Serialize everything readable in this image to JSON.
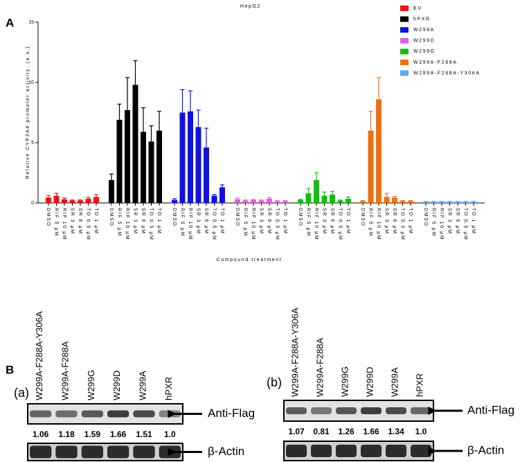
{
  "chart_data": {
    "type": "bar",
    "title": "HepG2",
    "y_label": "Relative CYP3A4 promoter activity, (a.u.)",
    "x_label": "Compound treatment",
    "categories": [
      "DMSO",
      "RIF 5 µM",
      "RIF 10 µM",
      "SR 3 µM",
      "SR 6 µM",
      "TO 0.5 µM",
      "TO 1 µM"
    ],
    "series": [
      {
        "name": "EV",
        "color": "#f01010",
        "values": [
          0.45,
          0.6,
          0.3,
          0.2,
          0.2,
          0.35,
          0.5
        ],
        "errors": [
          0.15,
          0.2,
          0.1,
          0.05,
          0.05,
          0.1,
          0.2
        ]
      },
      {
        "name": "hPXR",
        "color": "#000000",
        "values": [
          1.9,
          6.9,
          7.7,
          9.8,
          5.9,
          5.1,
          6.0
        ],
        "errors": [
          0.5,
          1.3,
          2.7,
          2.0,
          2.0,
          1.3,
          1.6
        ]
      },
      {
        "name": "W299A",
        "color": "#1010e0",
        "values": [
          0.25,
          7.5,
          7.6,
          6.3,
          4.6,
          0.6,
          1.3
        ],
        "errors": [
          0.1,
          1.9,
          1.7,
          1.4,
          1.6,
          0.1,
          0.2
        ]
      },
      {
        "name": "W299D",
        "color": "#e060d8",
        "values": [
          0.3,
          0.2,
          0.25,
          0.2,
          0.35,
          0.15,
          0.15
        ],
        "errors": [
          0.1,
          0.05,
          0.05,
          0.05,
          0.1,
          0.05,
          0.05
        ]
      },
      {
        "name": "W299G",
        "color": "#10c010",
        "values": [
          0.25,
          0.8,
          1.9,
          0.6,
          0.7,
          0.2,
          0.35
        ],
        "errors": [
          0.05,
          0.4,
          0.6,
          0.3,
          0.25,
          0.05,
          0.15
        ]
      },
      {
        "name": "W299A-F288A",
        "color": "#f07010",
        "values": [
          0.15,
          6.0,
          8.6,
          0.5,
          0.45,
          0.15,
          0.15
        ],
        "errors": [
          0.05,
          1.6,
          1.8,
          0.3,
          0.1,
          0.05,
          0.05
        ]
      },
      {
        "name": "W299A-F288A-Y306A",
        "color": "#5aa8f0",
        "values": [
          0.1,
          0.1,
          0.1,
          0.1,
          0.1,
          0.1,
          0.1
        ],
        "errors": [
          0.03,
          0.03,
          0.03,
          0.03,
          0.03,
          0.03,
          0.03
        ]
      }
    ],
    "ylim": [
      0,
      15
    ],
    "yticks": [
      0,
      5,
      10,
      15
    ]
  },
  "panel_a": {
    "label": "A"
  },
  "panel_b": {
    "label": "B",
    "blots": [
      {
        "label": "(a)",
        "lanes": [
          "W299A-F288A-Y306A",
          "W299A-F288A",
          "W299G",
          "W299D",
          "W299A",
          "hPXR"
        ],
        "ratios": [
          "1.06",
          "1.18",
          "1.59",
          "1.66",
          "1.51",
          "1.0"
        ],
        "bands": [
          "Anti-Flag",
          "β-Actin"
        ]
      },
      {
        "label": "(b)",
        "lanes": [
          "W299A-F288A-Y306A",
          "W299A-F288A",
          "W299G",
          "W299D",
          "W299A",
          "hPXR"
        ],
        "ratios": [
          "1.07",
          "0.81",
          "1.26",
          "1.66",
          "1.34",
          "1.0"
        ],
        "bands": [
          "Anti-Flag",
          "β-Actin"
        ]
      }
    ]
  }
}
